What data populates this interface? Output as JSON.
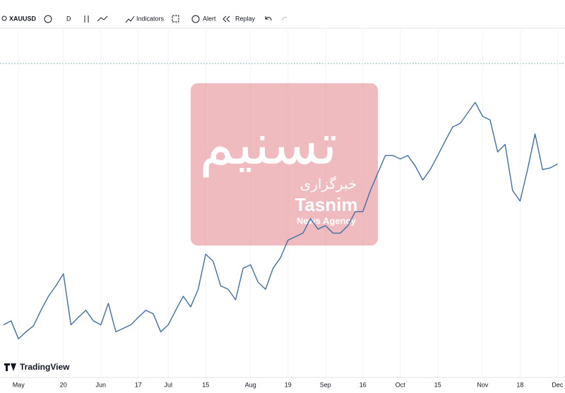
{
  "toolbar": {
    "symbol": "XAUUSD",
    "interval": "D",
    "indicators": "Indicators",
    "alert": "Alert",
    "replay": "Replay"
  },
  "brand": "TradingView",
  "watermark": {
    "logo": "تسنیم",
    "agency_fa": "خبرگزاری",
    "name": "Tasnim",
    "subtitle": "News Agency"
  },
  "chart_data": {
    "type": "line",
    "categories": [
      null,
      null,
      "May",
      null,
      null,
      null,
      null,
      null,
      "20",
      null,
      null,
      null,
      null,
      "Jun",
      null,
      null,
      null,
      null,
      "17",
      null,
      null,
      null,
      "Jul",
      null,
      null,
      null,
      null,
      "15",
      null,
      null,
      null,
      null,
      null,
      "Aug",
      null,
      null,
      null,
      null,
      "19",
      null,
      null,
      null,
      null,
      "Sep",
      null,
      null,
      null,
      null,
      "16",
      null,
      null,
      null,
      null,
      "Oct",
      null,
      null,
      null,
      null,
      "15",
      null,
      null,
      null,
      null,
      null,
      "Nov",
      null,
      null,
      null,
      null,
      "18",
      null,
      null,
      null,
      null,
      "Dec"
    ],
    "series": [
      {
        "name": "XAUUSD",
        "color": "#3f6ea8",
        "values": [
          2339,
          2347,
          2311,
          2325,
          2337,
          2368,
          2396,
          2417,
          2441,
          2339,
          2354,
          2368,
          2347,
          2339,
          2382,
          2325,
          2332,
          2339,
          2354,
          2368,
          2361,
          2325,
          2339,
          2368,
          2396,
          2375,
          2410,
          2480,
          2466,
          2417,
          2410,
          2389,
          2452,
          2459,
          2424,
          2410,
          2452,
          2473,
          2508,
          2515,
          2522,
          2551,
          2530,
          2537,
          2522,
          2522,
          2537,
          2565,
          2565,
          2607,
          2642,
          2677,
          2677,
          2670,
          2677,
          2656,
          2628,
          2649,
          2677,
          2706,
          2734,
          2741,
          2762,
          2783,
          2755,
          2748,
          2684,
          2699,
          2607,
          2586,
          2649,
          2720,
          2649,
          2652,
          2660
        ]
      }
    ],
    "ylim": [
      2241,
      2931
    ],
    "grid": true
  }
}
